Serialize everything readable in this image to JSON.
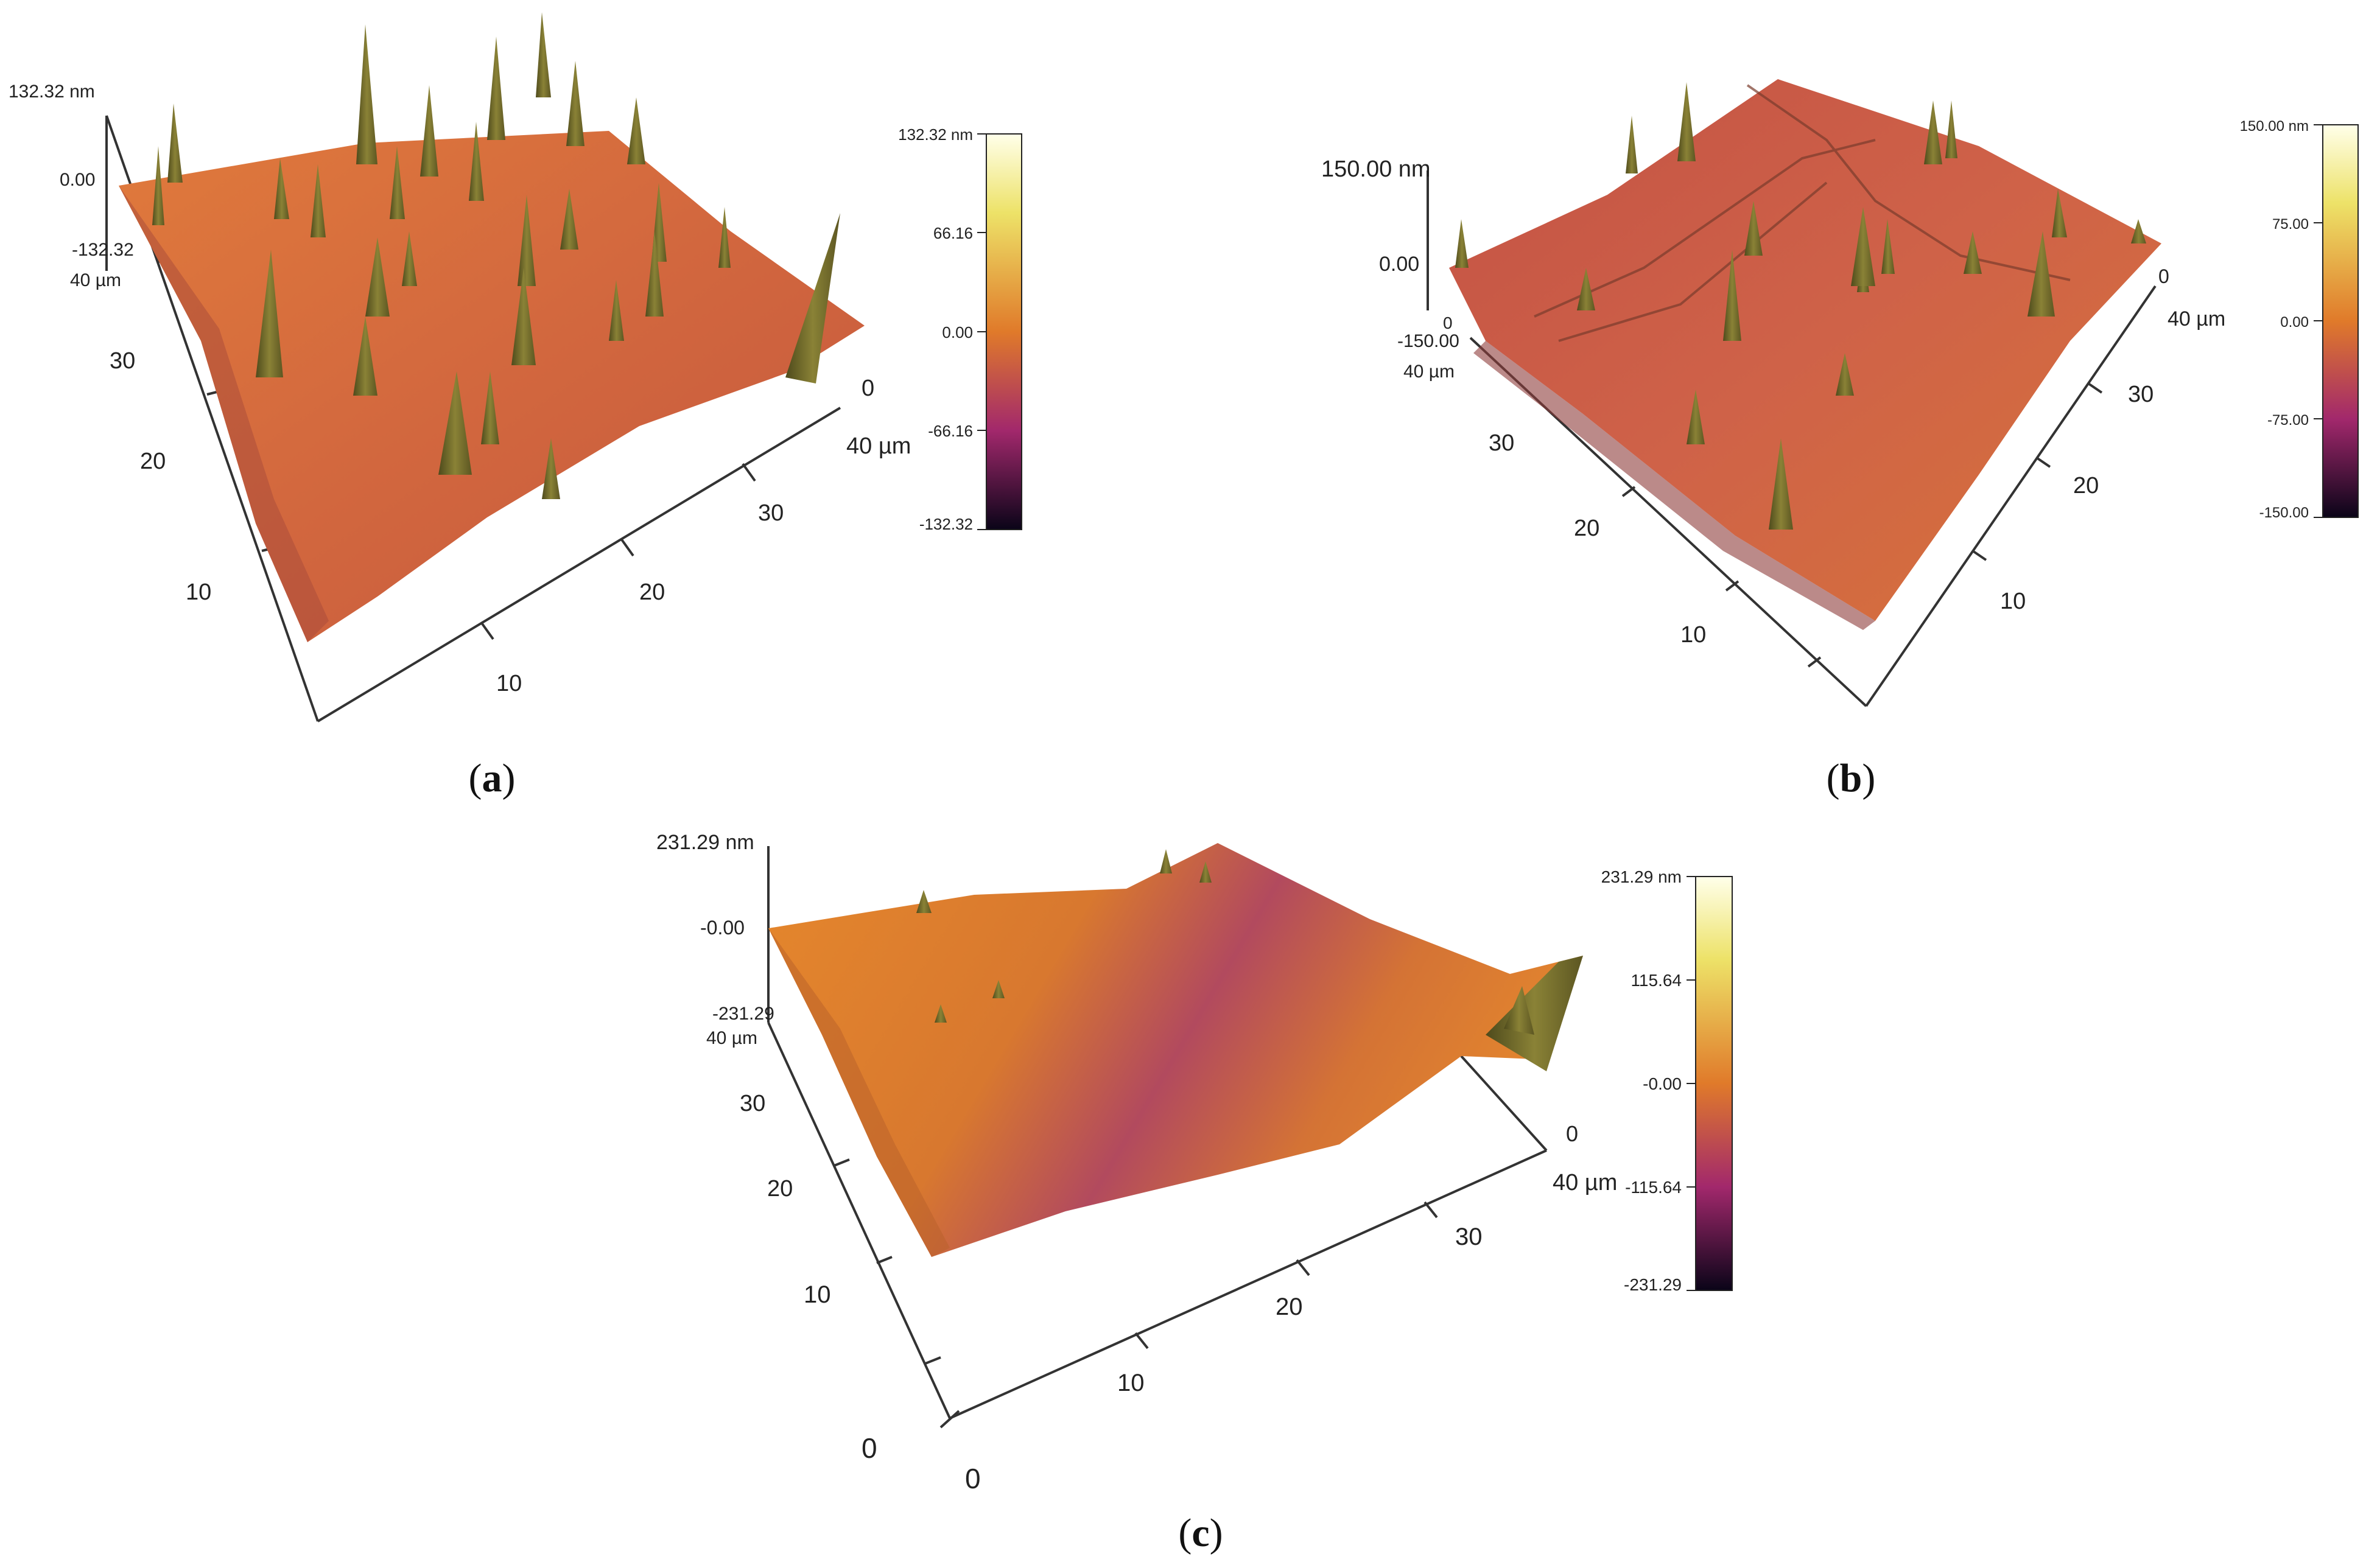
{
  "panels": [
    {
      "id": "a",
      "caption_letter": "a",
      "z_max": "132.32 nm",
      "z_mid": "0.00",
      "z_min": "-132.32",
      "y_end": "40 µm",
      "y_ticks": [
        "30",
        "20",
        "10"
      ],
      "x_ticks": [
        "10",
        "20",
        "30"
      ],
      "x_zero": "0",
      "x_end": "40 µm",
      "colorbar": {
        "labels": [
          "132.32 nm",
          "66.16",
          "0.00",
          "-66.16",
          "-132.32"
        ]
      },
      "surface_color": "#d5693c"
    },
    {
      "id": "b",
      "caption_letter": "b",
      "z_max": "150.00 nm",
      "z_mid": "0.00",
      "z_zero": "0",
      "z_min": "-150.00",
      "y_end": "40 µm",
      "y_ticks": [
        "30",
        "20",
        "10"
      ],
      "x_ticks": [
        "10",
        "20",
        "30"
      ],
      "x_zero": "0",
      "x_end": "40 µm",
      "colorbar": {
        "labels": [
          "150.00 nm",
          "75.00",
          "0.00",
          "-75.00",
          "-150.00"
        ]
      },
      "surface_color": "#cc5e48"
    },
    {
      "id": "c",
      "caption_letter": "c",
      "z_max": "231.29 nm",
      "z_mid": "-0.00",
      "z_min": "-231.29",
      "y_end": "40 µm",
      "y_ticks": [
        "30",
        "20",
        "10"
      ],
      "x_ticks": [
        "10",
        "20",
        "30"
      ],
      "x_zero": "0",
      "x_end": "40 µm",
      "origin_y": "0",
      "origin_x": "0",
      "colorbar": {
        "labels": [
          "231.29 nm",
          "115.64",
          "-0.00",
          "-115.64",
          "-231.29"
        ]
      },
      "surface_color": "#e0812e"
    }
  ],
  "colors": {
    "colorbar_top": "#ffffe8",
    "colorbar_upper": "#e8d84a",
    "colorbar_mid": "#e07a2a",
    "colorbar_lower": "#a02a6a",
    "colorbar_bottom": "#0a0418",
    "spike": "#6e6a2c"
  }
}
